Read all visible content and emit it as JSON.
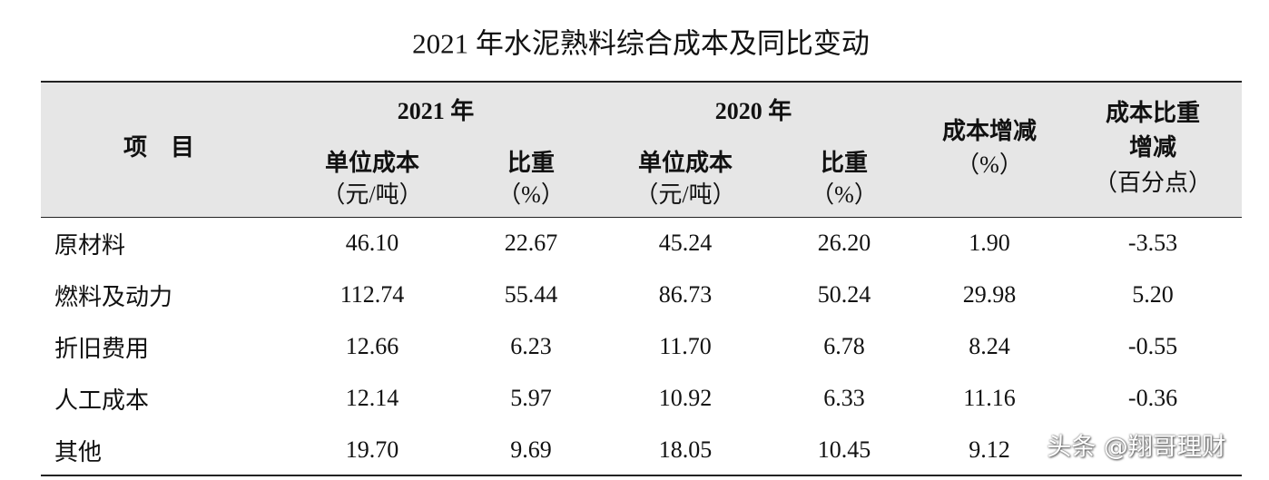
{
  "title": "2021 年水泥熟料综合成本及同比变动",
  "table": {
    "header": {
      "item": "项　目",
      "groups": [
        {
          "label": "2021 年",
          "columns": [
            [
              "单位成本",
              "（元/吨）"
            ],
            [
              "比重",
              "（%）"
            ]
          ]
        },
        {
          "label": "2020 年",
          "columns": [
            [
              "单位成本",
              "（元/吨）"
            ],
            [
              "比重",
              "（%）"
            ]
          ]
        }
      ],
      "extra": [
        [
          "成本增减",
          "（%）"
        ],
        [
          "成本比重",
          "增减",
          "（百分点）"
        ]
      ]
    },
    "rows": [
      [
        "原材料",
        "46.10",
        "22.67",
        "45.24",
        "26.20",
        "1.90",
        "-3.53"
      ],
      [
        "燃料及动力",
        "112.74",
        "55.44",
        "86.73",
        "50.24",
        "29.98",
        "5.20"
      ],
      [
        "折旧费用",
        "12.66",
        "6.23",
        "11.70",
        "6.78",
        "8.24",
        "-0.55"
      ],
      [
        "人工成本",
        "12.14",
        "5.97",
        "10.92",
        "6.33",
        "11.16",
        "-0.36"
      ],
      [
        "其他",
        "19.70",
        "9.69",
        "18.05",
        "10.45",
        "9.12",
        ""
      ]
    ]
  },
  "watermark": "头条 @翔哥理财"
}
